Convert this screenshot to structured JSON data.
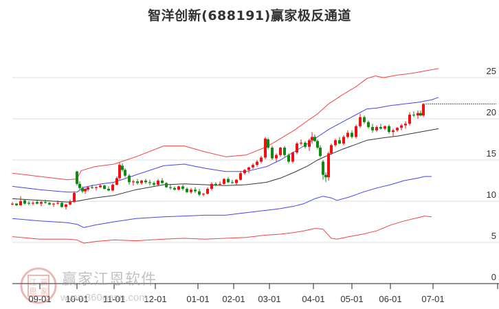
{
  "title": "智洋创新(688191)赢家极反通道",
  "watermark": {
    "name": "赢家江恩软件",
    "url": "www.360gann.com",
    "seal": [
      "江",
      "赢",
      "恩",
      "家"
    ]
  },
  "colors": {
    "up": "#ee1111",
    "down": "#118811",
    "outer_band": "#ee2222",
    "inner_band": "#2222ee",
    "mid_line": "#111111",
    "grid": "#dddddd",
    "last_price_line": "#118811"
  },
  "chart_data": {
    "type": "candlestick",
    "title": "智洋创新(688191)赢家极反通道",
    "xlabel": "",
    "ylabel": "",
    "ylim": [
      0,
      27
    ],
    "yticks": [
      0,
      5,
      10,
      15,
      20,
      25
    ],
    "ytick_labels": [
      "0",
      "5",
      "10",
      "15",
      "20",
      "25"
    ],
    "xtick_labels": [
      "09-01",
      "10-01",
      "11-01",
      "12-01",
      "01-01",
      "02-01",
      "03-01",
      "04-01",
      "05-01",
      "06-01",
      "07-01"
    ],
    "xtick_index": [
      20,
      47,
      74,
      104,
      135,
      161,
      187,
      219,
      247,
      275,
      306
    ],
    "grid": true,
    "legend": null,
    "last_close": 21.8,
    "series": [
      {
        "name": "upper_outer_band",
        "color": "#ee2222",
        "points": [
          [
            0,
            13.4
          ],
          [
            20,
            13.0
          ],
          [
            40,
            12.6
          ],
          [
            47,
            12.7
          ],
          [
            50,
            13.7
          ],
          [
            60,
            14.2
          ],
          [
            74,
            14.5
          ],
          [
            90,
            15.4
          ],
          [
            110,
            16.7
          ],
          [
            125,
            16.7
          ],
          [
            140,
            16.0
          ],
          [
            155,
            15.4
          ],
          [
            170,
            15.6
          ],
          [
            185,
            16.6
          ],
          [
            195,
            17.6
          ],
          [
            205,
            18.6
          ],
          [
            215,
            19.8
          ],
          [
            222,
            20.6
          ],
          [
            230,
            21.8
          ],
          [
            240,
            22.9
          ],
          [
            250,
            23.9
          ],
          [
            258,
            24.9
          ],
          [
            264,
            25.2
          ],
          [
            270,
            25.0
          ],
          [
            280,
            25.3
          ],
          [
            290,
            25.5
          ],
          [
            300,
            25.8
          ],
          [
            310,
            26.1
          ]
        ]
      },
      {
        "name": "upper_inner_band",
        "color": "#2222ee",
        "points": [
          [
            0,
            11.8
          ],
          [
            20,
            11.4
          ],
          [
            40,
            11.1
          ],
          [
            47,
            11.1
          ],
          [
            52,
            11.7
          ],
          [
            65,
            12.1
          ],
          [
            74,
            12.3
          ],
          [
            90,
            13.2
          ],
          [
            110,
            14.3
          ],
          [
            125,
            14.5
          ],
          [
            140,
            14.0
          ],
          [
            155,
            13.6
          ],
          [
            170,
            13.6
          ],
          [
            185,
            14.2
          ],
          [
            195,
            15.0
          ],
          [
            205,
            16.0
          ],
          [
            215,
            17.0
          ],
          [
            222,
            17.8
          ],
          [
            230,
            18.7
          ],
          [
            240,
            19.6
          ],
          [
            250,
            20.5
          ],
          [
            258,
            21.2
          ],
          [
            265,
            21.3
          ],
          [
            275,
            21.6
          ],
          [
            285,
            21.8
          ],
          [
            295,
            22.0
          ],
          [
            305,
            22.3
          ],
          [
            310,
            22.6
          ]
        ]
      },
      {
        "name": "middle_line",
        "color": "#111111",
        "points": [
          [
            0,
            10.3
          ],
          [
            20,
            10.1
          ],
          [
            40,
            9.9
          ],
          [
            47,
            10.0
          ],
          [
            60,
            10.4
          ],
          [
            74,
            10.7
          ],
          [
            90,
            11.4
          ],
          [
            110,
            12.0
          ],
          [
            125,
            12.1
          ],
          [
            140,
            12.0
          ],
          [
            155,
            11.9
          ],
          [
            170,
            12.0
          ],
          [
            185,
            12.3
          ],
          [
            195,
            12.8
          ],
          [
            205,
            13.5
          ],
          [
            215,
            14.3
          ],
          [
            222,
            15.0
          ],
          [
            230,
            15.6
          ],
          [
            240,
            16.3
          ],
          [
            250,
            16.9
          ],
          [
            258,
            17.4
          ],
          [
            270,
            17.7
          ],
          [
            280,
            17.9
          ],
          [
            290,
            18.2
          ],
          [
            300,
            18.5
          ],
          [
            310,
            18.8
          ]
        ]
      },
      {
        "name": "lower_inner_band",
        "color": "#2222ee",
        "points": [
          [
            0,
            7.9
          ],
          [
            20,
            7.6
          ],
          [
            40,
            7.4
          ],
          [
            47,
            7.2
          ],
          [
            52,
            6.8
          ],
          [
            60,
            7.1
          ],
          [
            74,
            7.5
          ],
          [
            90,
            7.9
          ],
          [
            110,
            8.1
          ],
          [
            125,
            8.2
          ],
          [
            140,
            8.3
          ],
          [
            155,
            8.3
          ],
          [
            170,
            8.6
          ],
          [
            185,
            8.9
          ],
          [
            195,
            9.1
          ],
          [
            205,
            9.4
          ],
          [
            212,
            9.7
          ],
          [
            220,
            10.3
          ],
          [
            226,
            10.6
          ],
          [
            232,
            10.4
          ],
          [
            236,
            10.1
          ],
          [
            245,
            10.5
          ],
          [
            255,
            11.1
          ],
          [
            265,
            11.6
          ],
          [
            275,
            12.0
          ],
          [
            285,
            12.5
          ],
          [
            295,
            12.8
          ],
          [
            300,
            13.0
          ],
          [
            305,
            13.0
          ]
        ]
      },
      {
        "name": "lower_outer_band",
        "color": "#ee2222",
        "points": [
          [
            0,
            5.7
          ],
          [
            20,
            5.4
          ],
          [
            40,
            5.4
          ],
          [
            47,
            5.3
          ],
          [
            52,
            4.9
          ],
          [
            60,
            5.1
          ],
          [
            74,
            5.3
          ],
          [
            90,
            5.2
          ],
          [
            110,
            5.4
          ],
          [
            125,
            5.5
          ],
          [
            140,
            5.4
          ],
          [
            155,
            5.5
          ],
          [
            170,
            5.6
          ],
          [
            185,
            5.9
          ],
          [
            195,
            6.0
          ],
          [
            205,
            6.2
          ],
          [
            212,
            6.4
          ],
          [
            220,
            6.7
          ],
          [
            226,
            6.6
          ],
          [
            232,
            5.5
          ],
          [
            236,
            5.4
          ],
          [
            245,
            5.7
          ],
          [
            255,
            6.0
          ],
          [
            265,
            6.4
          ],
          [
            275,
            7.1
          ],
          [
            285,
            7.6
          ],
          [
            295,
            8.0
          ],
          [
            300,
            8.2
          ],
          [
            305,
            8.1
          ]
        ]
      }
    ],
    "candles_note": "OHLC approximated from pixels; [index, open, high, low, close]",
    "candles": [
      [
        0,
        9.6,
        9.9,
        9.5,
        9.7
      ],
      [
        3,
        9.7,
        9.8,
        9.4,
        9.5
      ],
      [
        6,
        9.5,
        10.6,
        9.5,
        10.0
      ],
      [
        9,
        10.1,
        10.2,
        9.6,
        9.7
      ],
      [
        12,
        9.8,
        10.0,
        9.5,
        9.7
      ],
      [
        15,
        9.7,
        10.0,
        9.5,
        9.8
      ],
      [
        18,
        9.9,
        10.1,
        9.6,
        9.7
      ],
      [
        21,
        9.7,
        10.0,
        9.4,
        9.9
      ],
      [
        24,
        9.9,
        10.2,
        9.7,
        9.8
      ],
      [
        27,
        9.8,
        9.9,
        9.5,
        9.6
      ],
      [
        30,
        9.6,
        9.8,
        9.3,
        9.7
      ],
      [
        33,
        9.7,
        10.1,
        9.6,
        9.8
      ],
      [
        36,
        9.8,
        10.0,
        9.2,
        9.3
      ],
      [
        39,
        9.3,
        9.7,
        9.0,
        9.6
      ],
      [
        42,
        9.6,
        10.2,
        9.5,
        9.9
      ],
      [
        45,
        9.9,
        11.2,
        9.8,
        11.0
      ],
      [
        47,
        13.6,
        13.7,
        11.9,
        12.1
      ],
      [
        49,
        12.1,
        12.4,
        11.4,
        11.6
      ],
      [
        51,
        11.6,
        11.8,
        11.0,
        11.2
      ],
      [
        53,
        11.2,
        11.6,
        10.9,
        11.5
      ],
      [
        55,
        11.4,
        11.8,
        11.2,
        11.7
      ],
      [
        58,
        11.7,
        12.0,
        11.5,
        11.6
      ],
      [
        61,
        11.6,
        11.8,
        11.3,
        11.7
      ],
      [
        64,
        11.7,
        12.1,
        11.6,
        11.9
      ],
      [
        67,
        11.9,
        12.0,
        11.4,
        11.5
      ],
      [
        70,
        11.5,
        11.8,
        11.2,
        11.3
      ],
      [
        73,
        11.3,
        12.2,
        11.2,
        12.0
      ],
      [
        76,
        12.0,
        13.0,
        11.9,
        12.8
      ],
      [
        78,
        12.8,
        14.7,
        12.6,
        14.4
      ],
      [
        80,
        14.3,
        14.6,
        13.6,
        13.8
      ],
      [
        82,
        13.8,
        14.0,
        12.9,
        13.1
      ],
      [
        85,
        13.1,
        13.3,
        12.0,
        12.3
      ],
      [
        88,
        12.3,
        12.6,
        11.9,
        12.4
      ],
      [
        91,
        12.4,
        12.7,
        12.0,
        12.2
      ],
      [
        94,
        12.2,
        12.6,
        12.0,
        12.5
      ],
      [
        97,
        12.5,
        12.7,
        12.1,
        12.3
      ],
      [
        100,
        12.3,
        12.6,
        11.9,
        12.2
      ],
      [
        103,
        12.2,
        12.4,
        11.8,
        12.0
      ],
      [
        106,
        12.0,
        12.7,
        11.9,
        12.5
      ],
      [
        109,
        12.5,
        12.8,
        12.1,
        12.2
      ],
      [
        112,
        12.2,
        12.3,
        11.6,
        11.7
      ],
      [
        115,
        11.7,
        12.0,
        11.4,
        11.6
      ],
      [
        118,
        11.6,
        11.8,
        11.3,
        11.4
      ],
      [
        121,
        11.4,
        11.9,
        11.3,
        11.8
      ],
      [
        124,
        11.8,
        12.0,
        11.3,
        11.5
      ],
      [
        127,
        11.5,
        11.7,
        11.0,
        11.1
      ],
      [
        130,
        11.1,
        11.6,
        10.9,
        11.4
      ],
      [
        133,
        11.4,
        11.7,
        11.0,
        11.2
      ],
      [
        136,
        11.2,
        11.5,
        10.6,
        10.8
      ],
      [
        139,
        10.8,
        11.0,
        10.6,
        10.9
      ],
      [
        142,
        10.9,
        11.7,
        10.8,
        11.5
      ],
      [
        145,
        11.5,
        12.3,
        11.3,
        12.1
      ],
      [
        148,
        12.1,
        12.3,
        11.8,
        12.0
      ],
      [
        151,
        12.0,
        12.4,
        11.9,
        12.1
      ],
      [
        154,
        12.1,
        12.8,
        12.0,
        12.7
      ],
      [
        157,
        12.7,
        12.9,
        12.2,
        12.3
      ],
      [
        160,
        12.3,
        12.6,
        12.1,
        12.2
      ],
      [
        163,
        12.2,
        12.7,
        12.0,
        12.6
      ],
      [
        166,
        12.6,
        13.6,
        12.5,
        13.4
      ],
      [
        169,
        13.4,
        13.9,
        13.2,
        13.8
      ],
      [
        172,
        13.8,
        14.2,
        13.4,
        14.1
      ],
      [
        175,
        14.1,
        14.6,
        13.9,
        14.4
      ],
      [
        178,
        14.4,
        15.0,
        14.2,
        14.8
      ],
      [
        181,
        14.8,
        15.5,
        14.6,
        15.3
      ],
      [
        184,
        15.3,
        17.8,
        15.1,
        17.6
      ],
      [
        186,
        17.5,
        17.7,
        16.3,
        16.5
      ],
      [
        189,
        16.5,
        16.7,
        15.0,
        15.2
      ],
      [
        192,
        15.2,
        15.8,
        14.8,
        15.6
      ],
      [
        195,
        15.6,
        16.6,
        15.4,
        16.5
      ],
      [
        198,
        16.5,
        16.7,
        15.4,
        15.6
      ],
      [
        201,
        15.6,
        15.8,
        14.6,
        14.8
      ],
      [
        204,
        14.8,
        16.0,
        14.6,
        15.9
      ],
      [
        207,
        15.9,
        17.2,
        15.7,
        17.0
      ],
      [
        210,
        17.0,
        17.5,
        16.8,
        17.1
      ],
      [
        213,
        17.1,
        17.3,
        16.4,
        16.6
      ],
      [
        216,
        16.6,
        17.6,
        16.1,
        17.4
      ],
      [
        218,
        17.4,
        18.4,
        17.0,
        17.8
      ],
      [
        220,
        17.8,
        18.1,
        17.2,
        17.3
      ],
      [
        222,
        17.3,
        17.5,
        16.3,
        16.5
      ],
      [
        224,
        16.5,
        16.8,
        15.3,
        15.5
      ],
      [
        226,
        14.8,
        15.0,
        12.6,
        13.2
      ],
      [
        228,
        13.2,
        13.5,
        12.3,
        12.9
      ],
      [
        230,
        12.9,
        16.0,
        12.5,
        15.8
      ],
      [
        232,
        15.8,
        17.0,
        15.6,
        16.8
      ],
      [
        235,
        16.8,
        17.6,
        16.6,
        17.4
      ],
      [
        238,
        17.4,
        17.8,
        16.9,
        17.0
      ],
      [
        241,
        17.0,
        18.0,
        16.8,
        17.8
      ],
      [
        244,
        17.8,
        18.6,
        17.6,
        18.3
      ],
      [
        247,
        18.3,
        18.6,
        17.6,
        17.8
      ],
      [
        250,
        17.8,
        19.3,
        17.6,
        19.1
      ],
      [
        253,
        19.1,
        20.6,
        18.9,
        20.2
      ],
      [
        256,
        20.2,
        20.4,
        19.4,
        19.6
      ],
      [
        259,
        19.6,
        19.8,
        18.8,
        19.0
      ],
      [
        262,
        19.0,
        19.4,
        18.3,
        18.6
      ],
      [
        265,
        18.6,
        19.2,
        18.4,
        19.0
      ],
      [
        268,
        19.0,
        19.4,
        18.7,
        18.8
      ],
      [
        271,
        18.8,
        19.2,
        18.6,
        19.1
      ],
      [
        274,
        19.1,
        19.3,
        18.2,
        18.4
      ],
      [
        277,
        18.4,
        18.8,
        17.8,
        18.6
      ],
      [
        280,
        18.6,
        19.0,
        18.4,
        18.9
      ],
      [
        283,
        18.9,
        19.4,
        18.6,
        19.2
      ],
      [
        286,
        19.2,
        19.7,
        18.8,
        19.4
      ],
      [
        289,
        19.4,
        20.8,
        19.2,
        20.5
      ],
      [
        292,
        20.5,
        20.9,
        20.2,
        20.4
      ],
      [
        295,
        20.4,
        21.0,
        20.0,
        20.7
      ],
      [
        297,
        20.7,
        21.0,
        20.3,
        20.4
      ],
      [
        299,
        20.4,
        21.9,
        20.2,
        21.8
      ]
    ]
  }
}
